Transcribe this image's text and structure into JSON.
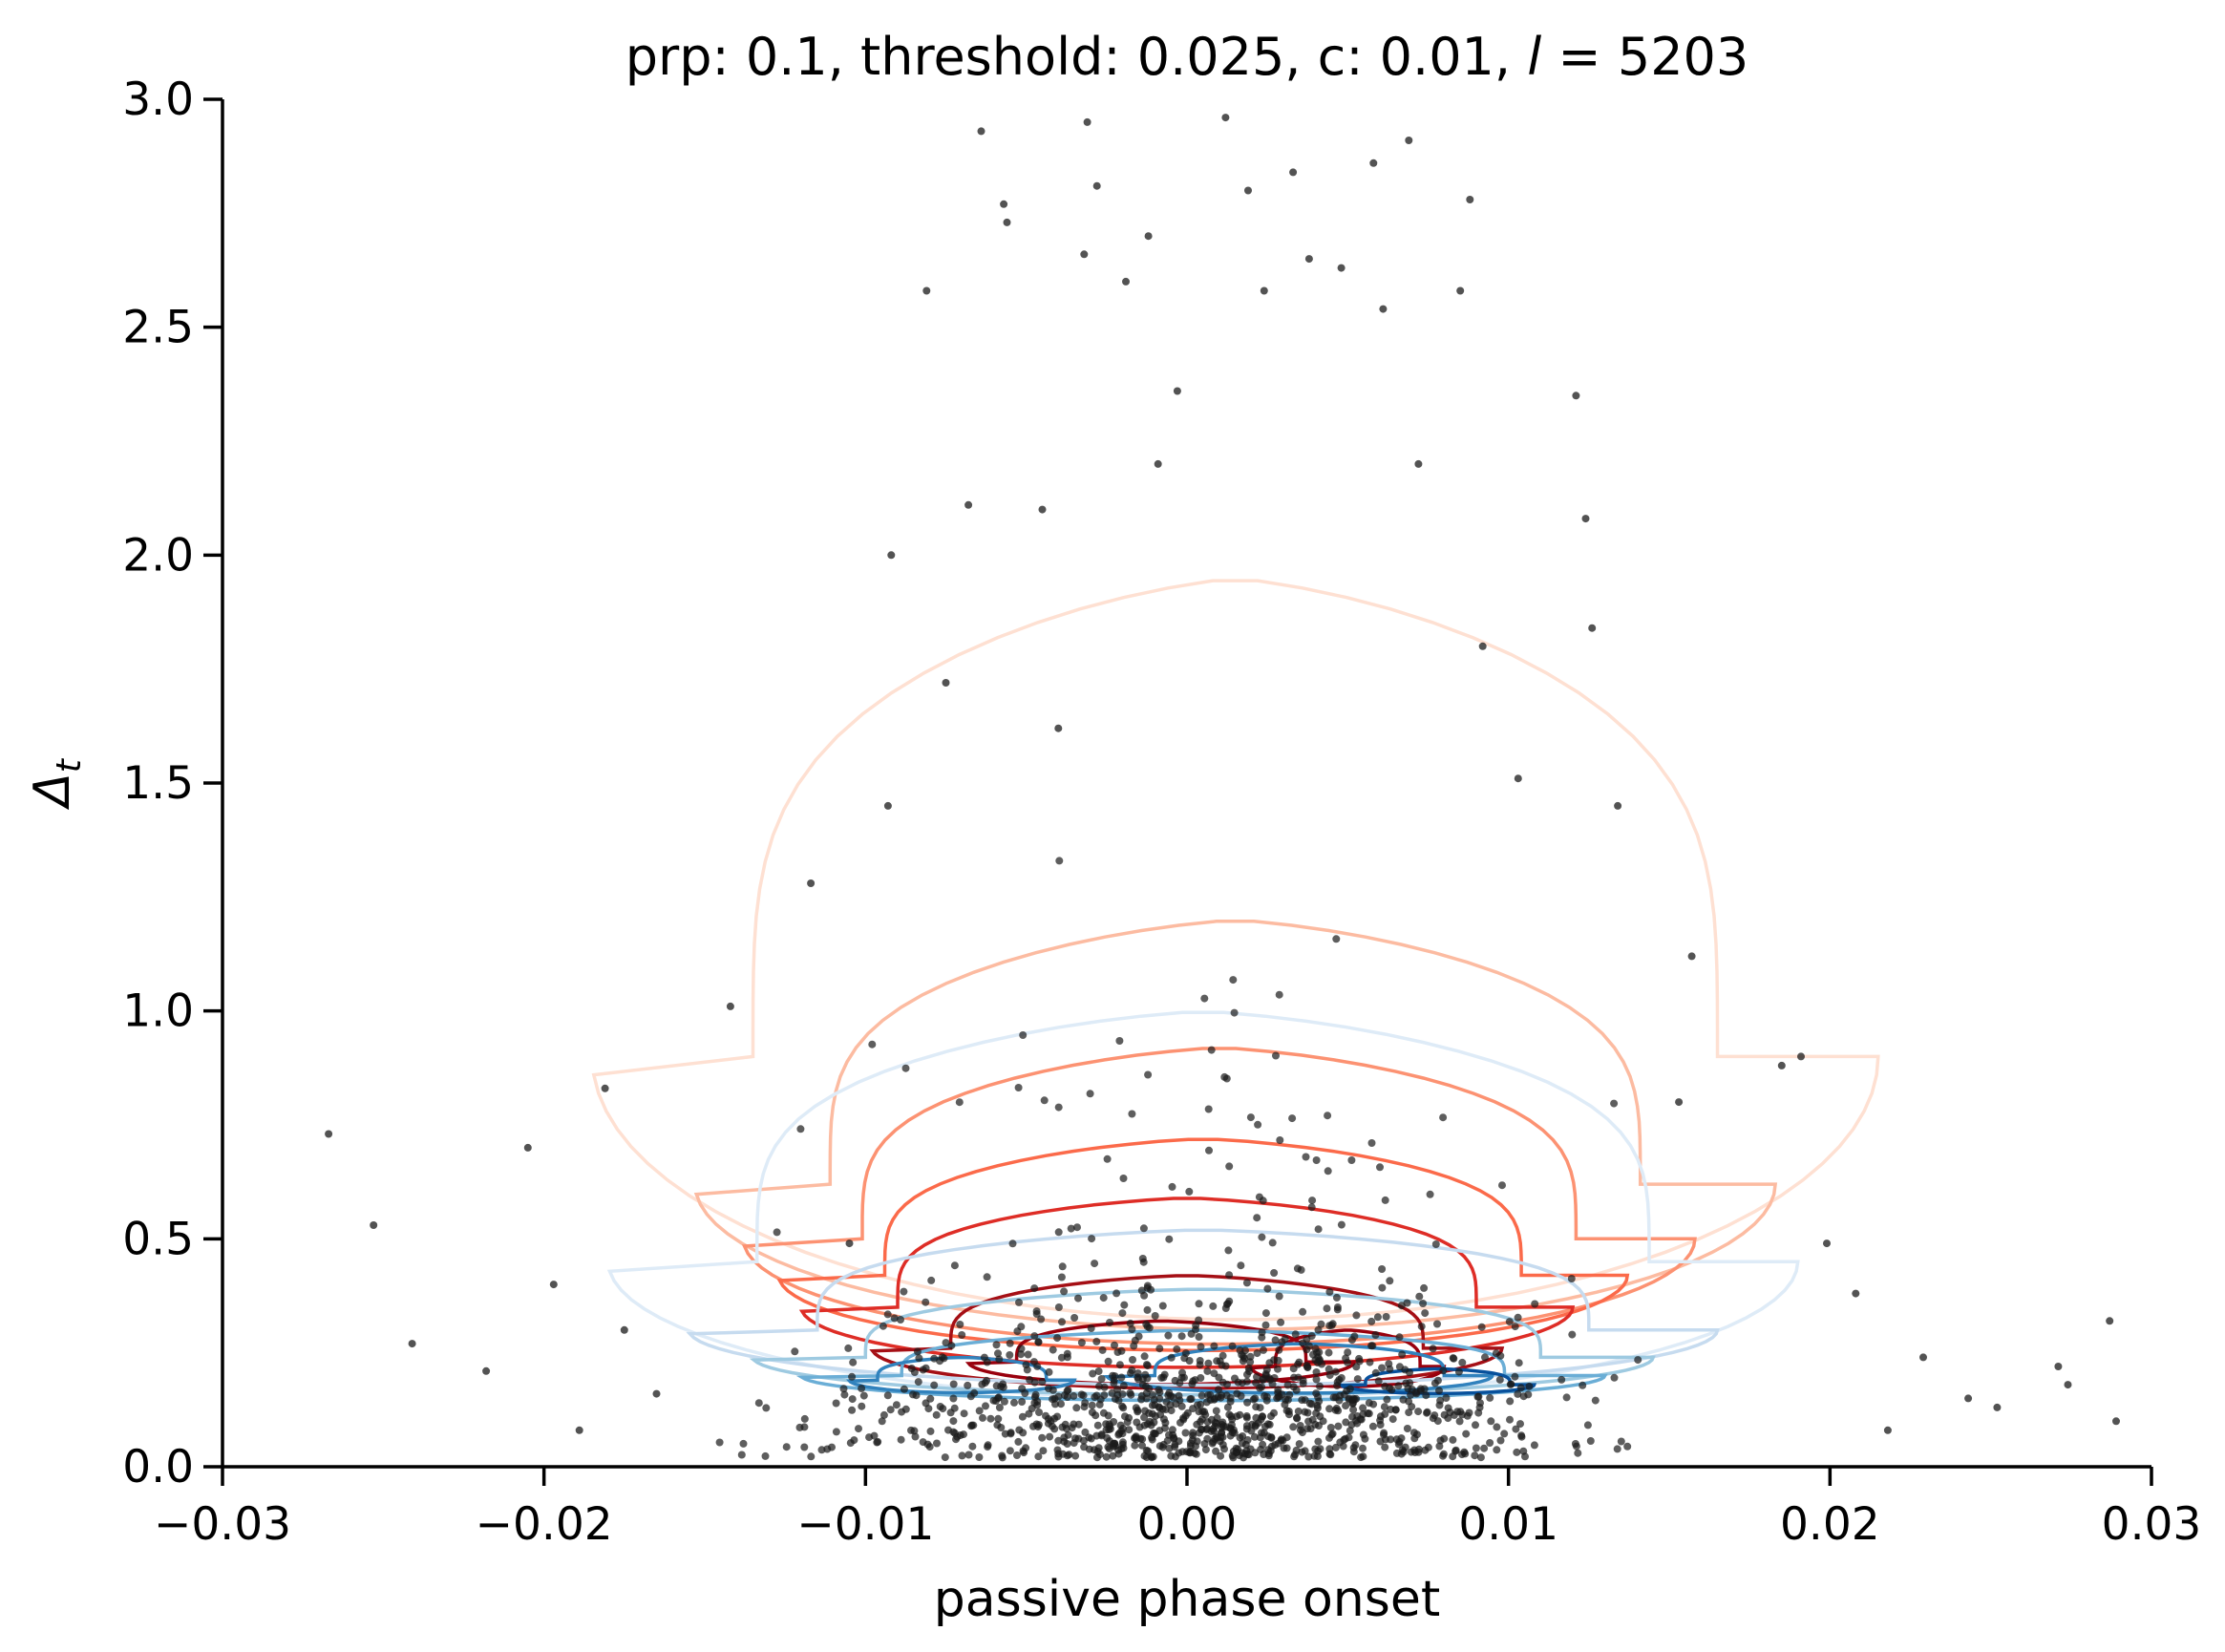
{
  "chart_data": {
    "type": "scatter",
    "title_parts": {
      "prefix": "prp: 0.1, threshold: 0.025, c: 0.01, ",
      "symbol": "l",
      "suffix": " = 5203"
    },
    "xlabel": "passive phase onset",
    "ylabel": {
      "symbol": "Δ",
      "subscript": "t"
    },
    "xlim": [
      -0.03,
      0.03
    ],
    "ylim": [
      0.0,
      3.0
    ],
    "xticks": [
      -0.03,
      -0.02,
      -0.01,
      0.0,
      0.01,
      0.02,
      0.03
    ],
    "xtick_labels": [
      "−0.03",
      "−0.02",
      "−0.01",
      "0.00",
      "0.01",
      "0.02",
      "0.03"
    ],
    "yticks": [
      0.0,
      0.5,
      1.0,
      1.5,
      2.0,
      2.5,
      3.0
    ],
    "ytick_labels": [
      "0.0",
      "0.5",
      "1.0",
      "1.5",
      "2.0",
      "2.5",
      "3.0"
    ],
    "grid": false,
    "legend": "none",
    "scatter_color": "#1a1a1a",
    "visible_sample_points": [
      [
        -0.0267,
        0.73
      ],
      [
        -0.0253,
        0.53
      ],
      [
        -0.0241,
        0.27
      ],
      [
        -0.0218,
        0.21
      ],
      [
        -0.0205,
        0.7
      ],
      [
        -0.0197,
        0.4
      ],
      [
        -0.0189,
        0.08
      ],
      [
        -0.0181,
        0.83
      ],
      [
        -0.0175,
        0.3
      ],
      [
        -0.0165,
        0.16
      ],
      [
        -0.0142,
        1.01
      ],
      [
        -0.0117,
        1.28
      ],
      [
        -0.0105,
        0.49
      ],
      [
        -0.0093,
        1.45
      ],
      [
        -0.0092,
        2.0
      ],
      [
        -0.0081,
        2.58
      ],
      [
        -0.0075,
        1.72
      ],
      [
        -0.0068,
        2.11
      ],
      [
        -0.0064,
        2.93
      ],
      [
        -0.0057,
        2.77
      ],
      [
        -0.0056,
        2.73
      ],
      [
        -0.0045,
        2.1
      ],
      [
        -0.004,
        1.62
      ],
      [
        -0.0032,
        2.66
      ],
      [
        -0.0031,
        2.95
      ],
      [
        -0.0028,
        2.81
      ],
      [
        -0.0019,
        2.6
      ],
      [
        -0.0012,
        2.7
      ],
      [
        -0.0009,
        2.2
      ],
      [
        -0.0003,
        2.36
      ],
      [
        0.0012,
        2.96
      ],
      [
        0.0019,
        2.8
      ],
      [
        0.0024,
        2.58
      ],
      [
        0.0033,
        2.84
      ],
      [
        0.0038,
        2.65
      ],
      [
        0.0048,
        2.63
      ],
      [
        0.0058,
        2.86
      ],
      [
        0.0061,
        2.54
      ],
      [
        0.0069,
        2.91
      ],
      [
        0.0085,
        2.58
      ],
      [
        0.0088,
        2.78
      ],
      [
        0.0072,
        2.2
      ],
      [
        0.0092,
        1.8
      ],
      [
        0.0103,
        1.51
      ],
      [
        0.0121,
        2.35
      ],
      [
        0.0124,
        2.08
      ],
      [
        0.0126,
        1.84
      ],
      [
        0.0134,
        1.45
      ],
      [
        0.0153,
        0.8
      ],
      [
        0.0157,
        1.12
      ],
      [
        0.0185,
        0.88
      ],
      [
        0.0191,
        0.9
      ],
      [
        0.0199,
        0.49
      ],
      [
        0.0208,
        0.38
      ],
      [
        0.0218,
        0.08
      ],
      [
        0.0229,
        0.24
      ],
      [
        0.0243,
        0.15
      ],
      [
        0.0252,
        0.13
      ],
      [
        0.0271,
        0.22
      ],
      [
        0.0274,
        0.18
      ],
      [
        0.0287,
        0.32
      ],
      [
        0.0289,
        0.1
      ]
    ],
    "kde_contours": [
      {
        "color": "#fee0d2",
        "centers": [
          [
            0.0015,
            0.9
          ]
        ],
        "scales": [
          [
            0.02,
            1.05
          ]
        ]
      },
      {
        "color": "#fcbba1",
        "centers": [
          [
            0.0015,
            0.62
          ]
        ],
        "scales": [
          [
            0.0168,
            0.58
          ]
        ]
      },
      {
        "color": "#fc9272",
        "centers": [
          [
            0.001,
            0.5
          ]
        ],
        "scales": [
          [
            0.0148,
            0.42
          ]
        ]
      },
      {
        "color": "#fb6a4a",
        "centers": [
          [
            0.0005,
            0.42
          ]
        ],
        "scales": [
          [
            0.0132,
            0.3
          ]
        ]
      },
      {
        "color": "#de2d26",
        "centers": [
          [
            0.0,
            0.35
          ]
        ],
        "scales": [
          [
            0.012,
            0.24
          ]
        ]
      },
      {
        "color": "#a50f15",
        "centers": [
          [
            0.0,
            0.26
          ]
        ],
        "scales": [
          [
            0.0098,
            0.16
          ]
        ]
      },
      {
        "color": "#99000d",
        "centers": [
          [
            -0.0008,
            0.23
          ],
          [
            0.005,
            0.22
          ]
        ],
        "scales": [
          [
            0.006,
            0.09
          ],
          [
            0.003,
            0.08
          ]
        ]
      },
      {
        "color": "#deebf7",
        "centers": [
          [
            0.0005,
            0.45
          ]
        ],
        "scales": [
          [
            0.0185,
            0.55
          ]
        ]
      },
      {
        "color": "#c6dbef",
        "centers": [
          [
            0.0005,
            0.3
          ]
        ],
        "scales": [
          [
            0.016,
            0.22
          ]
        ]
      },
      {
        "color": "#9ecae1",
        "centers": [
          [
            0.0005,
            0.24
          ]
        ],
        "scales": [
          [
            0.014,
            0.15
          ]
        ]
      },
      {
        "color": "#6baed6",
        "centers": [
          [
            0.0005,
            0.2
          ]
        ],
        "scales": [
          [
            0.0125,
            0.1
          ]
        ]
      },
      {
        "color": "#3182bd",
        "centers": [
          [
            -0.007,
            0.19
          ],
          [
            0.0035,
            0.2
          ]
        ],
        "scales": [
          [
            0.0035,
            0.05
          ],
          [
            0.006,
            0.07
          ]
        ]
      },
      {
        "color": "#08519c",
        "centers": [
          [
            0.0078,
            0.18
          ]
        ],
        "scales": [
          [
            0.003,
            0.035
          ]
        ]
      }
    ]
  }
}
